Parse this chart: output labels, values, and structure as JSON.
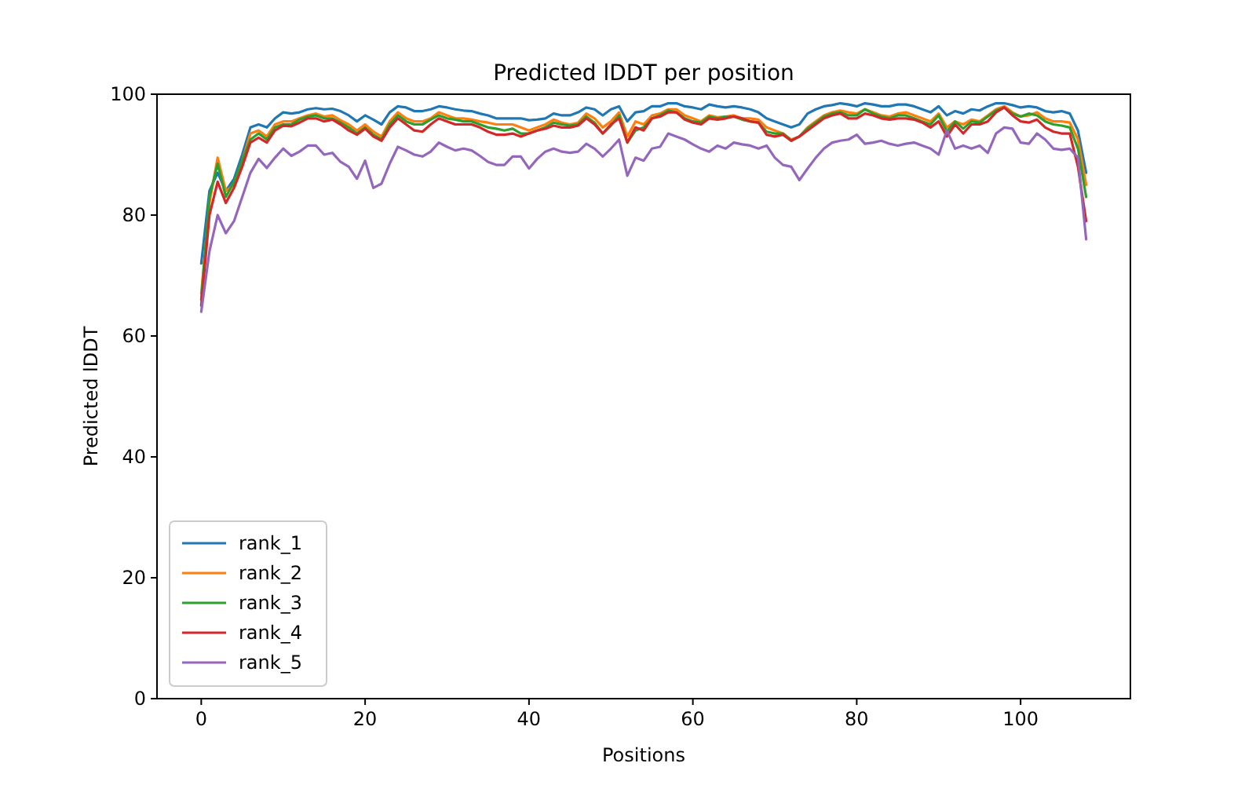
{
  "chart_data": {
    "type": "line",
    "title": "Predicted lDDT per position",
    "xlabel": "Positions",
    "ylabel": "Predicted lDDT",
    "x": [
      0,
      1,
      2,
      3,
      4,
      5,
      6,
      7,
      8,
      9,
      10,
      11,
      12,
      13,
      14,
      15,
      16,
      17,
      18,
      19,
      20,
      21,
      22,
      23,
      24,
      25,
      26,
      27,
      28,
      29,
      30,
      31,
      32,
      33,
      34,
      35,
      36,
      37,
      38,
      39,
      40,
      41,
      42,
      43,
      44,
      45,
      46,
      47,
      48,
      49,
      50,
      51,
      52,
      53,
      54,
      55,
      56,
      57,
      58,
      59,
      60,
      61,
      62,
      63,
      64,
      65,
      66,
      67,
      68,
      69,
      70,
      71,
      72,
      73,
      74,
      75,
      76,
      77,
      78,
      79,
      80,
      81,
      82,
      83,
      84,
      85,
      86,
      87,
      88,
      89,
      90,
      91,
      92,
      93,
      94,
      95,
      96,
      97,
      98,
      99,
      100,
      101,
      102,
      103,
      104,
      105,
      106,
      107,
      108
    ],
    "xlim": [
      -5.4,
      113.4
    ],
    "xticks": [
      0,
      20,
      40,
      60,
      80,
      100
    ],
    "ylim": [
      0,
      100
    ],
    "yticks": [
      0,
      20,
      40,
      60,
      80,
      100
    ],
    "grid": false,
    "legend": "bottom left",
    "line_style": "solid",
    "marker": "none",
    "series": [
      {
        "name": "rank_1",
        "color": "#1f77b4",
        "values": [
          72,
          84,
          87,
          84,
          86,
          90,
          94.5,
          95,
          94.5,
          96,
          97,
          96.8,
          97,
          97.5,
          97.7,
          97.5,
          97.6,
          97.2,
          96.5,
          95.5,
          96.5,
          95.8,
          95,
          97,
          98,
          97.8,
          97.2,
          97.2,
          97.5,
          98,
          97.8,
          97.5,
          97.3,
          97.2,
          96.8,
          96.5,
          96,
          96,
          96,
          96,
          95.7,
          95.8,
          96,
          96.8,
          96.5,
          96.5,
          97,
          97.8,
          97.5,
          96.5,
          97.5,
          98,
          95.5,
          97,
          97.2,
          98,
          98,
          98.5,
          98.5,
          98,
          97.8,
          97.5,
          98.3,
          98,
          97.8,
          98,
          97.8,
          97.5,
          97,
          96,
          95.5,
          95,
          94.5,
          95,
          96.8,
          97.5,
          98,
          98.2,
          98.5,
          98.3,
          98,
          98.5,
          98.3,
          98,
          98,
          98.3,
          98.3,
          98,
          97.5,
          97,
          98,
          96.5,
          97.2,
          96.8,
          97.5,
          97.3,
          98,
          98.5,
          98.5,
          98.2,
          97.8,
          98,
          97.8,
          97.2,
          97,
          97.2,
          96.8,
          94,
          87
        ]
      },
      {
        "name": "rank_2",
        "color": "#ff7f0e",
        "values": [
          67,
          82,
          89.5,
          84,
          85,
          89,
          93.5,
          94,
          93,
          95,
          95.5,
          95.5,
          96,
          96.5,
          96.8,
          96.3,
          96.5,
          95.7,
          95,
          94,
          95,
          93.8,
          93,
          95.5,
          97,
          96,
          95.5,
          95.5,
          96,
          97,
          96.5,
          96,
          96,
          95.8,
          95.5,
          95.3,
          95,
          95,
          95,
          94.5,
          94,
          94.5,
          95,
          95.8,
          95.3,
          95,
          95.3,
          96.8,
          96,
          94.5,
          95.5,
          97,
          93,
          95.5,
          95,
          96.5,
          96.8,
          97.5,
          97.5,
          96.5,
          96,
          95.5,
          96.5,
          96.2,
          96.3,
          96.5,
          96,
          96,
          95.8,
          94.5,
          94,
          93.5,
          92.5,
          93,
          94.5,
          95.5,
          96.5,
          97,
          97.3,
          97,
          96.8,
          97.5,
          97,
          96.5,
          96.3,
          96.8,
          97,
          96.5,
          96,
          95.5,
          96.8,
          94.5,
          95.5,
          95,
          95.8,
          95.5,
          96.5,
          97.5,
          98,
          97,
          96.3,
          96.5,
          97,
          96,
          95.5,
          95.5,
          95.3,
          92.5,
          85
        ]
      },
      {
        "name": "rank_3",
        "color": "#2ca02c",
        "values": [
          66,
          83,
          88.5,
          83,
          85.5,
          89,
          92.5,
          93.5,
          92.5,
          94.5,
          95,
          95,
          95.8,
          96.3,
          96.5,
          96,
          96,
          95.3,
          94.5,
          93.5,
          94.5,
          93.3,
          92.5,
          95,
          96.5,
          95.5,
          95,
          95,
          95.8,
          96.5,
          96,
          95.8,
          95.5,
          95.5,
          95,
          94.5,
          94.3,
          94,
          94.3,
          93.5,
          93.5,
          94,
          94.5,
          95.3,
          95,
          94.8,
          95,
          96.3,
          95.3,
          93.5,
          94.8,
          96.5,
          92,
          94,
          94.5,
          96,
          96.5,
          97.3,
          97,
          96,
          95.5,
          95.3,
          96.3,
          96,
          96.3,
          96.3,
          95.8,
          95.5,
          95.3,
          93.8,
          93.5,
          93.5,
          92.3,
          93,
          94.3,
          95.3,
          96.3,
          96.8,
          97,
          96.5,
          96.5,
          97.5,
          96.8,
          96.3,
          96,
          96.5,
          96.5,
          96,
          95.5,
          95,
          96.5,
          93.8,
          95.5,
          94.3,
          95.5,
          95.3,
          96.3,
          97.3,
          97.8,
          96.8,
          96.3,
          96.8,
          96.5,
          95.5,
          95,
          94.8,
          94.5,
          91,
          83
        ]
      },
      {
        "name": "rank_4",
        "color": "#d62728",
        "values": [
          65,
          80,
          85.5,
          82,
          84.5,
          88,
          92,
          92.8,
          92,
          94,
          94.8,
          94.7,
          95.3,
          96,
          96,
          95.5,
          95.8,
          95,
          94,
          93.3,
          94.3,
          93,
          92.3,
          94.5,
          96,
          95,
          94,
          93.8,
          95,
          96,
          95.5,
          95,
          95,
          95,
          94.5,
          93.8,
          93.3,
          93.3,
          93.5,
          93,
          93.5,
          94,
          94.3,
          94.8,
          94.5,
          94.5,
          94.8,
          96,
          95,
          93.5,
          95,
          96,
          92,
          94.5,
          94,
          96,
          96.3,
          97,
          97,
          95.8,
          95.3,
          95,
          96,
          95.8,
          96,
          96.3,
          96,
          95.5,
          95.3,
          93.3,
          93,
          93.3,
          92.3,
          93,
          94,
          95,
          96,
          96.5,
          96.8,
          96,
          96,
          96.8,
          96.5,
          96,
          95.8,
          96,
          96,
          95.8,
          95.3,
          94.5,
          95.5,
          93,
          95,
          93.5,
          95,
          95,
          95.5,
          97,
          97.8,
          96.5,
          95.5,
          95.3,
          95.8,
          94.5,
          93.8,
          93.5,
          93.5,
          88,
          79
        ]
      },
      {
        "name": "rank_5",
        "color": "#9467bd",
        "values": [
          64,
          74,
          80,
          77,
          79,
          83,
          87,
          89.3,
          87.8,
          89.5,
          91,
          89.8,
          90.5,
          91.5,
          91.5,
          90,
          90.3,
          88.8,
          88,
          86,
          89,
          84.5,
          85.2,
          88.5,
          91.3,
          90.7,
          90,
          89.7,
          90.5,
          92,
          91.3,
          90.7,
          91,
          90.7,
          89.8,
          88.8,
          88.3,
          88.3,
          89.7,
          89.7,
          87.7,
          89.3,
          90.5,
          91,
          90.5,
          90.3,
          90.5,
          91.8,
          91,
          89.7,
          91,
          92.5,
          86.5,
          89.5,
          89,
          91,
          91.3,
          93.5,
          93,
          92.5,
          91.7,
          91,
          90.5,
          91.5,
          91,
          92,
          91.7,
          91.5,
          91,
          91.5,
          89.5,
          88.3,
          88,
          85.8,
          87.7,
          89.5,
          91,
          92,
          92.3,
          92.5,
          93.3,
          91.8,
          92,
          92.3,
          91.8,
          91.5,
          91.8,
          92,
          91.5,
          91,
          90,
          94,
          91,
          91.5,
          91,
          91.5,
          90.3,
          93.5,
          94.5,
          94.3,
          92,
          91.8,
          93.5,
          92.5,
          91,
          90.8,
          91,
          89.5,
          76
        ]
      }
    ]
  }
}
